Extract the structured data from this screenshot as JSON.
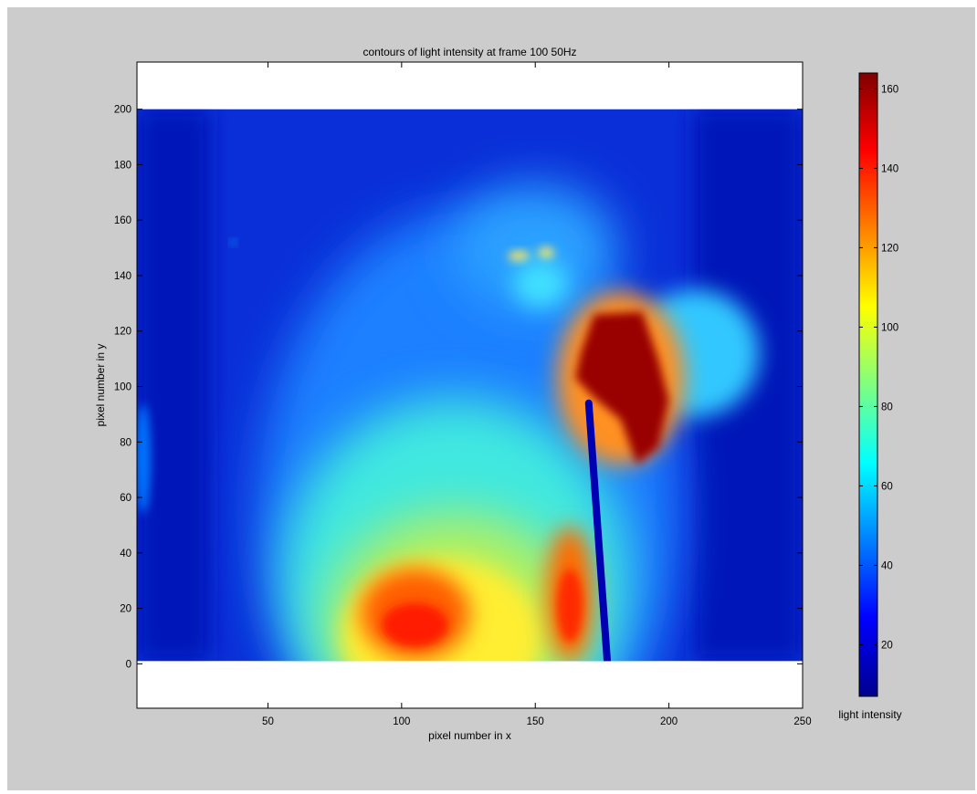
{
  "chart_data": {
    "type": "heatmap",
    "title": "contours of light intensity at frame 100 50Hz",
    "xlabel": "pixel number in x",
    "ylabel": "pixel number in y",
    "xlim": [
      1,
      250
    ],
    "ylim": [
      -16,
      217
    ],
    "data_extent_y": [
      1,
      200
    ],
    "x_ticks": [
      50,
      100,
      150,
      200,
      250
    ],
    "y_ticks": [
      0,
      20,
      40,
      60,
      80,
      100,
      120,
      140,
      160,
      180,
      200
    ],
    "colorbar": {
      "label": "light intensity",
      "range": [
        7,
        164
      ],
      "ticks": [
        20,
        40,
        60,
        80,
        100,
        120,
        140,
        160
      ],
      "colormap": "jet"
    },
    "features": [
      {
        "kind": "hot-spot",
        "center_x": 182,
        "center_y": 103,
        "intensity": 160
      },
      {
        "kind": "warm-region",
        "center_x": 105,
        "center_y": 18,
        "intensity": 130
      },
      {
        "kind": "warm-region",
        "center_x": 163,
        "center_y": 25,
        "intensity": 128
      },
      {
        "kind": "dark-streak",
        "from_x": 170,
        "from_y": 94,
        "to_x": 177,
        "to_y": 0,
        "intensity": 15
      },
      {
        "kind": "bright-spots",
        "center_x": 150,
        "center_y": 147,
        "intensity": 80
      },
      {
        "kind": "faint-dot",
        "center_x": 37,
        "center_y": 152,
        "intensity": 55
      },
      {
        "kind": "edge-glow",
        "center_x": 4,
        "center_y": 74,
        "intensity": 45
      }
    ]
  }
}
